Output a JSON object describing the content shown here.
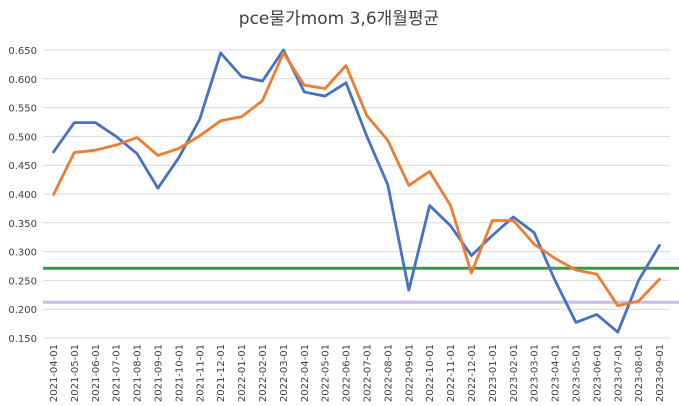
{
  "chart_data": {
    "type": "line",
    "title": "pce물가mom 3,6개월평균",
    "xlabel": "",
    "ylabel": "",
    "ylim": [
      0.15,
      0.65
    ],
    "yticks": [
      "0.150",
      "0.200",
      "0.250",
      "0.300",
      "0.350",
      "0.400",
      "0.450",
      "0.500",
      "0.550",
      "0.600",
      "0.650"
    ],
    "x": [
      "2021-04-01",
      "2021-05-01",
      "2021-06-01",
      "2021-07-01",
      "2021-08-01",
      "2021-09-01",
      "2021-10-01",
      "2021-11-01",
      "2021-12-01",
      "2022-01-01",
      "2022-02-01",
      "2022-03-01",
      "2022-04-01",
      "2022-05-01",
      "2022-06-01",
      "2022-07-01",
      "2022-08-01",
      "2022-09-01",
      "2022-10-01",
      "2022-11-01",
      "2022-12-01",
      "2023-01-01",
      "2023-02-01",
      "2023-03-01",
      "2023-04-01",
      "2023-05-01",
      "2023-06-01",
      "2023-07-01",
      "2023-08-01",
      "2023-09-01"
    ],
    "grid": true,
    "legend": "none",
    "series": [
      {
        "color": "#4472c4",
        "values": [
          0.473,
          0.524,
          0.524,
          0.5,
          0.47,
          0.41,
          0.463,
          0.53,
          0.645,
          0.604,
          0.596,
          0.65,
          0.577,
          0.57,
          0.593,
          0.5,
          0.416,
          0.233,
          0.38,
          0.345,
          0.293,
          0.328,
          0.36,
          0.333,
          0.25,
          0.177,
          0.191,
          0.16,
          0.25,
          0.311
        ]
      },
      {
        "color": "#ed7d31",
        "values": [
          0.399,
          0.472,
          0.476,
          0.485,
          0.498,
          0.467,
          0.479,
          0.501,
          0.527,
          0.534,
          0.562,
          0.645,
          0.589,
          0.583,
          0.623,
          0.536,
          0.493,
          0.415,
          0.439,
          0.38,
          0.263,
          0.354,
          0.354,
          0.313,
          0.288,
          0.268,
          0.261,
          0.206,
          0.214,
          0.252
        ]
      }
    ],
    "reference_lines": [
      {
        "value": 0.271,
        "color": "#2ea043"
      },
      {
        "value": 0.212,
        "color": "#c8bde8"
      }
    ]
  }
}
